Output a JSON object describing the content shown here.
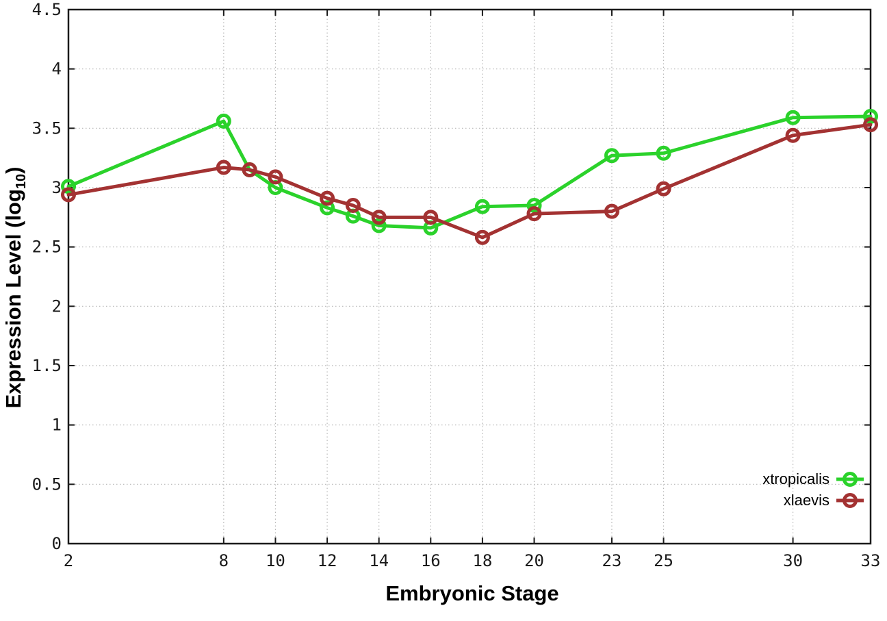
{
  "chart_data": {
    "type": "line",
    "title": "",
    "xlabel": "Embryonic Stage",
    "ylabel": "Expression Level (log10)",
    "ylabel_parts": {
      "base": "Expression Level (log",
      "sub": "10",
      "suffix": ")"
    },
    "xlim": [
      2,
      33
    ],
    "ylim": [
      0,
      4.5
    ],
    "xticks": [
      2,
      8,
      10,
      12,
      14,
      16,
      18,
      20,
      23,
      25,
      30,
      33
    ],
    "yticks": [
      0,
      0.5,
      1,
      1.5,
      2,
      2.5,
      3,
      3.5,
      4,
      4.5
    ],
    "grid": true,
    "legend_position": "bottom-right",
    "x": [
      2,
      8,
      9,
      10,
      12,
      13,
      14,
      16,
      18,
      20,
      23,
      25,
      30,
      33
    ],
    "series": [
      {
        "name": "xtropicalis",
        "color": "#2bd22b",
        "values": [
          3.01,
          3.56,
          3.15,
          3.0,
          2.83,
          2.76,
          2.68,
          2.66,
          2.84,
          2.85,
          3.27,
          3.29,
          3.59,
          3.6
        ]
      },
      {
        "name": "xlaevis",
        "color": "#a33232",
        "values": [
          2.94,
          3.17,
          3.15,
          3.09,
          2.91,
          2.85,
          2.75,
          2.75,
          2.58,
          2.78,
          2.8,
          2.99,
          3.44,
          3.53
        ]
      }
    ]
  },
  "colors": {
    "background": "#ffffff",
    "grid": "#b5b5b5",
    "axis": "#1a1a1a",
    "text": "#000000"
  }
}
